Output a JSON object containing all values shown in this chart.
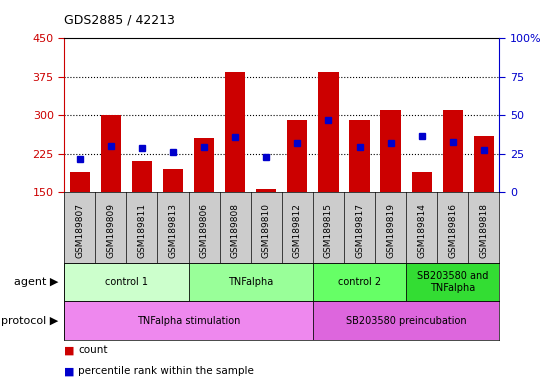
{
  "title": "GDS2885 / 42213",
  "samples": [
    "GSM189807",
    "GSM189809",
    "GSM189811",
    "GSM189813",
    "GSM189806",
    "GSM189808",
    "GSM189810",
    "GSM189812",
    "GSM189815",
    "GSM189817",
    "GSM189819",
    "GSM189814",
    "GSM189816",
    "GSM189818"
  ],
  "bar_heights": [
    190,
    300,
    210,
    195,
    255,
    385,
    155,
    290,
    385,
    290,
    310,
    190,
    310,
    260
  ],
  "blue_values": [
    215,
    240,
    235,
    228,
    238,
    258,
    218,
    245,
    290,
    238,
    245,
    260,
    248,
    232
  ],
  "ylim": [
    150,
    450
  ],
  "yticks_left": [
    150,
    225,
    300,
    375,
    450
  ],
  "yticks_right": [
    0,
    25,
    50,
    75,
    100
  ],
  "bar_color": "#cc0000",
  "blue_color": "#0000cc",
  "agent_groups": [
    {
      "label": "control 1",
      "start": 0,
      "end": 4,
      "color": "#ccffcc"
    },
    {
      "label": "TNFalpha",
      "start": 4,
      "end": 8,
      "color": "#99ff99"
    },
    {
      "label": "control 2",
      "start": 8,
      "end": 11,
      "color": "#66ff66"
    },
    {
      "label": "SB203580 and\nTNFalpha",
      "start": 11,
      "end": 14,
      "color": "#33dd33"
    }
  ],
  "protocol_groups": [
    {
      "label": "TNFalpha stimulation",
      "start": 0,
      "end": 8,
      "color": "#ee88ee"
    },
    {
      "label": "SB203580 preincubation",
      "start": 8,
      "end": 14,
      "color": "#dd66dd"
    }
  ],
  "left_axis_color": "#cc0000",
  "right_axis_color": "#0000cc",
  "bg_color": "#ffffff",
  "plot_bg": "#ffffff",
  "xtick_bg": "#cccccc",
  "agent_label": "agent",
  "protocol_label": "protocol",
  "legend_count": "count",
  "legend_percentile": "percentile rank within the sample",
  "grid_yticks": [
    225,
    300,
    375
  ]
}
